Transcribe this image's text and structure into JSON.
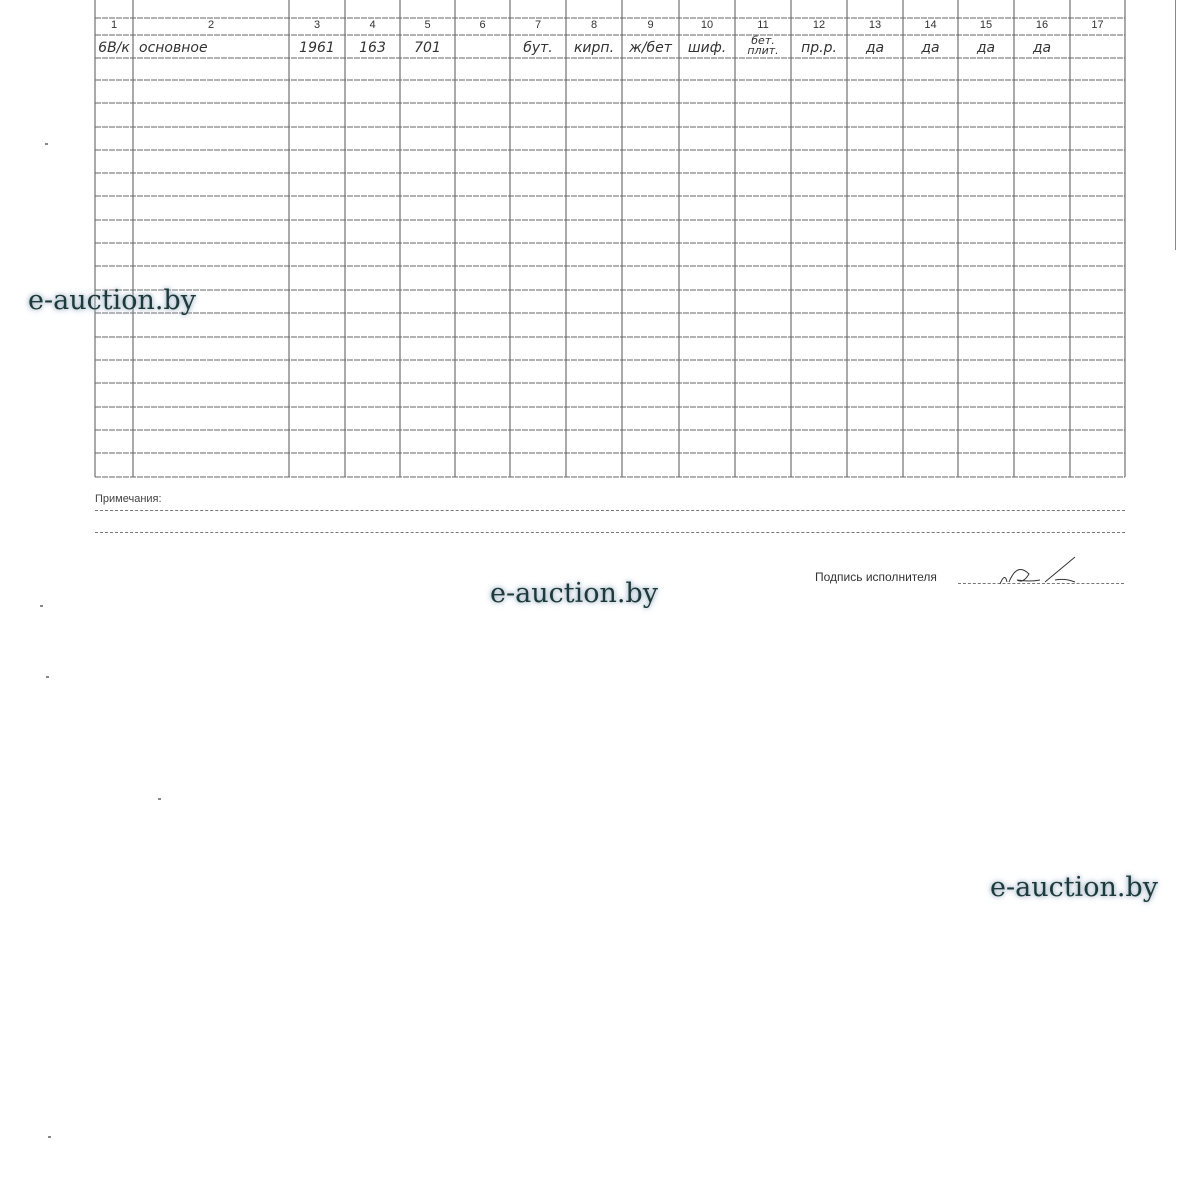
{
  "table": {
    "column_numbers": [
      "1",
      "2",
      "3",
      "4",
      "5",
      "6",
      "7",
      "8",
      "9",
      "10",
      "11",
      "12",
      "13",
      "14",
      "15",
      "16",
      "17"
    ],
    "row": [
      "6В/к",
      "основное",
      "1961",
      "163",
      "701",
      "",
      "бут.",
      "кирп.",
      "ж/бет",
      "шиф.",
      "бет. плит.",
      "пр.р.",
      "да",
      "да",
      "да",
      "да",
      ""
    ]
  },
  "notes_label": "Примечания:",
  "signature_label": "Подпись исполнителя",
  "watermark": "e-auction.by"
}
